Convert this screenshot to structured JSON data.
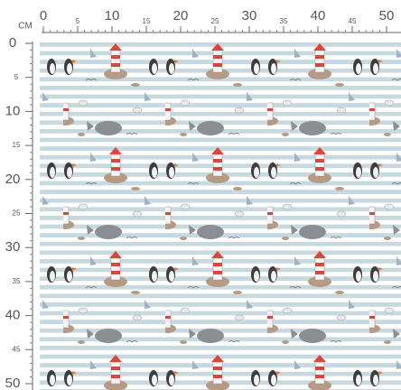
{
  "ruler": {
    "unit": "CM",
    "top_labels": [
      0,
      5,
      10,
      15,
      20,
      25,
      30,
      35,
      40,
      45,
      50
    ],
    "left_labels": [
      0,
      5,
      10,
      15,
      20,
      25,
      30,
      35,
      40,
      45,
      50
    ]
  }
}
